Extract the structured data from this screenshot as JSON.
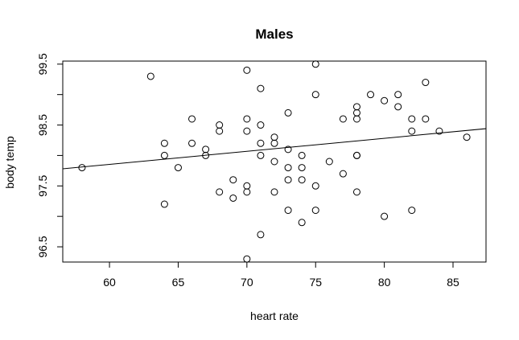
{
  "chart_data": {
    "type": "scatter",
    "title": "Males",
    "xlabel": "heart rate",
    "ylabel": "body temp",
    "xlim": [
      56.6,
      87.4
    ],
    "ylim": [
      96.25,
      99.55
    ],
    "xticks": [
      60,
      65,
      70,
      75,
      80,
      85
    ],
    "yticks": [
      96.5,
      97.0,
      97.5,
      98.0,
      98.5,
      99.0,
      99.5
    ],
    "ytick_labels": [
      "96.5",
      "97.5",
      "98.5",
      "99.5"
    ],
    "ytick_label_values": [
      96.5,
      97.5,
      98.5,
      99.5
    ],
    "regression_line": {
      "intercept": 96.57,
      "slope": 0.0214
    },
    "grid": false,
    "points": [
      [
        58,
        97.8
      ],
      [
        63,
        99.3
      ],
      [
        64,
        98.2
      ],
      [
        64,
        98.0
      ],
      [
        64,
        97.2
      ],
      [
        65,
        97.8
      ],
      [
        66,
        98.6
      ],
      [
        66,
        98.2
      ],
      [
        67,
        98.1
      ],
      [
        67,
        98.0
      ],
      [
        68,
        98.5
      ],
      [
        68,
        98.4
      ],
      [
        68,
        97.4
      ],
      [
        69,
        97.6
      ],
      [
        69,
        97.3
      ],
      [
        70,
        99.4
      ],
      [
        70,
        98.6
      ],
      [
        70,
        98.4
      ],
      [
        70,
        97.5
      ],
      [
        70,
        97.4
      ],
      [
        70,
        96.3
      ],
      [
        71,
        99.1
      ],
      [
        71,
        98.5
      ],
      [
        71,
        98.2
      ],
      [
        71,
        98.0
      ],
      [
        71,
        96.7
      ],
      [
        72,
        98.3
      ],
      [
        72,
        98.2
      ],
      [
        72,
        97.9
      ],
      [
        72,
        97.4
      ],
      [
        73,
        98.7
      ],
      [
        73,
        98.1
      ],
      [
        73,
        97.8
      ],
      [
        73,
        97.6
      ],
      [
        73,
        97.1
      ],
      [
        74,
        98.0
      ],
      [
        74,
        97.8
      ],
      [
        74,
        97.6
      ],
      [
        74,
        96.9
      ],
      [
        75,
        99.5
      ],
      [
        75,
        99.0
      ],
      [
        75,
        97.5
      ],
      [
        75,
        97.1
      ],
      [
        76,
        97.9
      ],
      [
        77,
        98.6
      ],
      [
        77,
        97.7
      ],
      [
        78,
        98.8
      ],
      [
        78,
        98.7
      ],
      [
        78,
        98.6
      ],
      [
        78,
        98.0
      ],
      [
        78,
        98.0
      ],
      [
        78,
        97.4
      ],
      [
        79,
        99.0
      ],
      [
        80,
        98.9
      ],
      [
        80,
        97.0
      ],
      [
        81,
        99.0
      ],
      [
        81,
        98.8
      ],
      [
        82,
        98.6
      ],
      [
        82,
        98.4
      ],
      [
        82,
        97.1
      ],
      [
        83,
        99.2
      ],
      [
        83,
        98.6
      ],
      [
        84,
        98.4
      ],
      [
        86,
        98.3
      ]
    ]
  }
}
